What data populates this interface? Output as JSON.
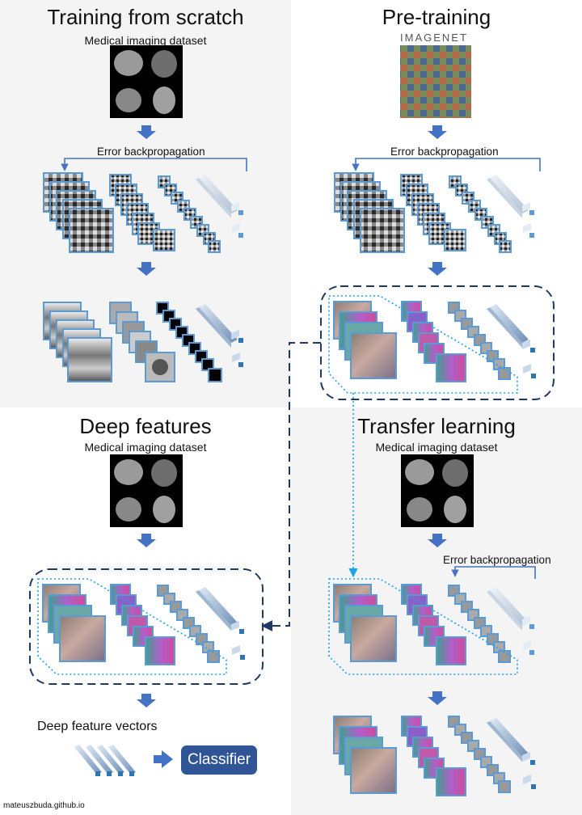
{
  "panels": {
    "scratch": {
      "title": "Training from scratch",
      "subtitle": "Medical imaging dataset",
      "backprop": "Error backpropagation"
    },
    "pretrain": {
      "title": "Pre-training",
      "logo": "IMAGENET",
      "backprop": "Error backpropagation"
    },
    "deep": {
      "title": "Deep features",
      "subtitle": "Medical imaging dataset",
      "vectors": "Deep feature vectors",
      "classifier": "Classifier"
    },
    "transfer": {
      "title": "Transfer learning",
      "subtitle": "Medical imaging dataset",
      "backprop": "Error backpropagation"
    }
  },
  "footer": "mateuszbuda.github.io",
  "colors": {
    "arrow": "#4472c4",
    "frame": "#5b9bd5",
    "dash_dark": "#1f3864",
    "dot_light": "#1aa3e8",
    "classifier": "#2f5597"
  }
}
